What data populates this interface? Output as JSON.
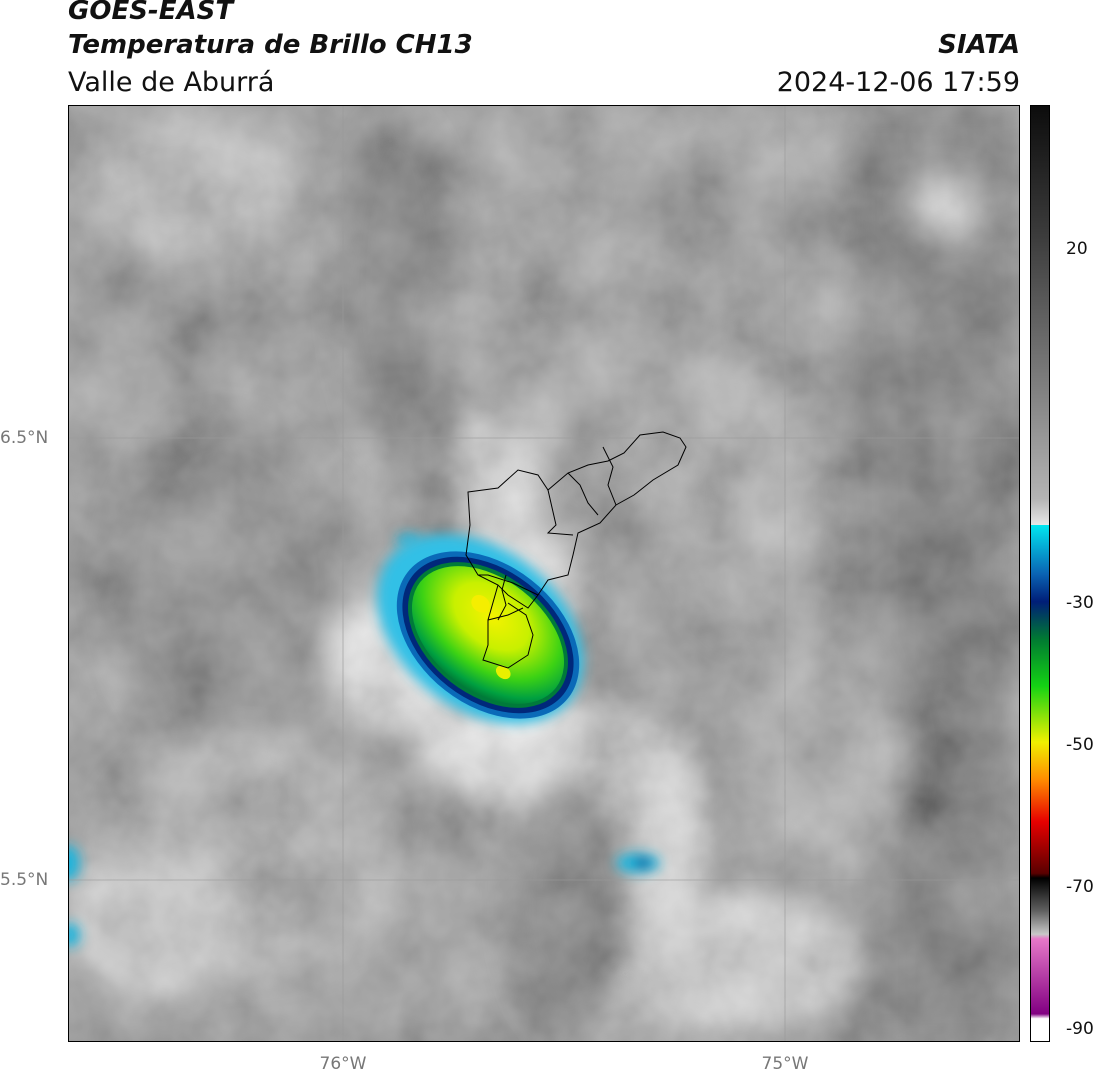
{
  "header": {
    "satellite": "GOES-EAST",
    "product": "Temperatura de Brillo CH13",
    "brand": "SIATA",
    "region": "Valle de Aburrá",
    "timestamp": "2024-12-06 17:59"
  },
  "axes": {
    "lat_labels": [
      "6.5°N",
      "5.5°N"
    ],
    "lon_labels": [
      "76°W",
      "75°W"
    ]
  },
  "colorbar": {
    "tick_labels": [
      "20",
      "-30",
      "-50",
      "-70",
      "-90"
    ],
    "colors": {
      "warm_dark": "#0c0c0c",
      "warm_gray": "#7f7f7f",
      "light_gray": "#e6e6e6",
      "cyan": "#00d2e6",
      "blue": "#0a64b4",
      "navy": "#001e78",
      "green_dark": "#007a32",
      "green": "#14d214",
      "yellow": "#f0f000",
      "orange": "#ff8c00",
      "red": "#e60000",
      "maroon": "#5a0000",
      "pink": "#e678c8",
      "purple": "#820082"
    }
  },
  "map": {
    "colors": {
      "land_gray": "#8e8e8e",
      "boundary": "#000000",
      "gridline": "#9a9a9a"
    }
  }
}
